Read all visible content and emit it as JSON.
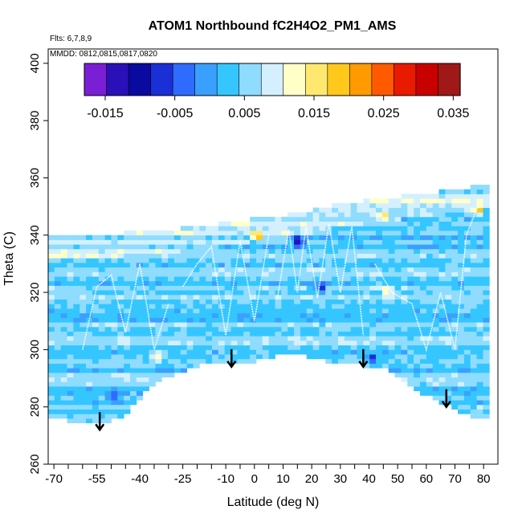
{
  "chart_data": {
    "type": "heatmap",
    "title": "ATOM1 Northbound fC2H4O2_PM1_AMS",
    "flights_note": "Flts: 6,7,8,9",
    "dates_note": "MMDD: 0812,0815,0817,0820",
    "xlabel": "Latitude (deg N)",
    "ylabel": "Theta (C)",
    "xlim": [
      -72,
      85
    ],
    "ylim": [
      260,
      405
    ],
    "x_ticks": [
      -70,
      -55,
      -40,
      -25,
      -10,
      0,
      10,
      20,
      30,
      40,
      50,
      60,
      70,
      80
    ],
    "y_ticks": [
      260,
      280,
      300,
      320,
      340,
      360,
      380,
      400
    ],
    "colorbar": {
      "range": [
        -0.018,
        0.036
      ],
      "tick_values": [
        -0.015,
        -0.005,
        0.005,
        0.015,
        0.025,
        0.035
      ],
      "tick_labels": [
        "-0.015",
        "-0.005",
        "0.005",
        "0.015",
        "0.025",
        "0.035"
      ],
      "colors": [
        "#7b1fd6",
        "#2a10b8",
        "#0a0aa0",
        "#1a2fd6",
        "#2f6bff",
        "#3aa0ff",
        "#35c6ff",
        "#8fdcff",
        "#d4f0ff",
        "#ffffc8",
        "#ffe870",
        "#ffc81a",
        "#ff9a00",
        "#ff5a00",
        "#e81a00",
        "#c80000",
        "#a01818"
      ]
    },
    "upper_boundary": [
      [
        -58,
        340
      ],
      [
        -45,
        340
      ],
      [
        -30,
        341
      ],
      [
        -15,
        343
      ],
      [
        0,
        345
      ],
      [
        15,
        347
      ],
      [
        30,
        350
      ],
      [
        45,
        352
      ],
      [
        60,
        354
      ],
      [
        70,
        355
      ],
      [
        75,
        356
      ],
      [
        78,
        357
      ]
    ],
    "lower_boundary": [
      [
        -72,
        275
      ],
      [
        -60,
        274
      ],
      [
        -55,
        273
      ],
      [
        -45,
        276
      ],
      [
        -35,
        288
      ],
      [
        -22,
        293
      ],
      [
        -10,
        295
      ],
      [
        0,
        295
      ],
      [
        12,
        298
      ],
      [
        25,
        295
      ],
      [
        35,
        294
      ],
      [
        45,
        293
      ],
      [
        55,
        286
      ],
      [
        70,
        278
      ],
      [
        78,
        275
      ]
    ],
    "theta_traces": [
      {
        "lat_range": [
          -60,
          -30
        ],
        "theta": [
          [
            -60,
            300
          ],
          [
            -55,
            322
          ],
          [
            -50,
            326
          ],
          [
            -45,
            306
          ],
          [
            -40,
            330
          ],
          [
            -35,
            300
          ],
          [
            -30,
            316
          ]
        ]
      },
      {
        "lat_range": [
          -25,
          5
        ],
        "theta": [
          [
            -25,
            322
          ],
          [
            -20,
            330
          ],
          [
            -15,
            336
          ],
          [
            -10,
            305
          ],
          [
            -5,
            338
          ],
          [
            0,
            310
          ],
          [
            5,
            340
          ]
        ]
      },
      {
        "lat_range": [
          8,
          40
        ],
        "theta": [
          [
            8,
            318
          ],
          [
            12,
            342
          ],
          [
            15,
            320
          ],
          [
            18,
            343
          ],
          [
            22,
            318
          ],
          [
            26,
            344
          ],
          [
            30,
            320
          ],
          [
            34,
            343
          ],
          [
            38,
            305
          ]
        ]
      },
      {
        "lat_range": [
          42,
          78
        ],
        "theta": [
          [
            42,
            330
          ],
          [
            48,
            320
          ],
          [
            55,
            316
          ],
          [
            60,
            300
          ],
          [
            65,
            320
          ],
          [
            70,
            300
          ],
          [
            74,
            340
          ],
          [
            78,
            350
          ]
        ]
      }
    ],
    "arrows": [
      {
        "lat": -54,
        "theta": 272
      },
      {
        "lat": -8,
        "theta": 294
      },
      {
        "lat": 38,
        "theta": 294
      },
      {
        "lat": 67,
        "theta": 280
      }
    ],
    "highlights": [
      {
        "lat": 22,
        "theta": 321,
        "value": -0.012
      },
      {
        "lat": 14,
        "theta": 337,
        "value": -0.016
      },
      {
        "lat": 40,
        "theta": 296,
        "value": -0.01
      },
      {
        "lat": -50,
        "theta": 283,
        "value": -0.008
      },
      {
        "lat": 44,
        "theta": 346,
        "value": 0.017
      },
      {
        "lat": 0,
        "theta": 339,
        "value": 0.022
      },
      {
        "lat": 45,
        "theta": 320,
        "value": 0.018
      },
      {
        "lat": -35,
        "theta": 297,
        "value": 0.015
      },
      {
        "lat": 77,
        "theta": 348,
        "value": 0.024
      }
    ]
  }
}
